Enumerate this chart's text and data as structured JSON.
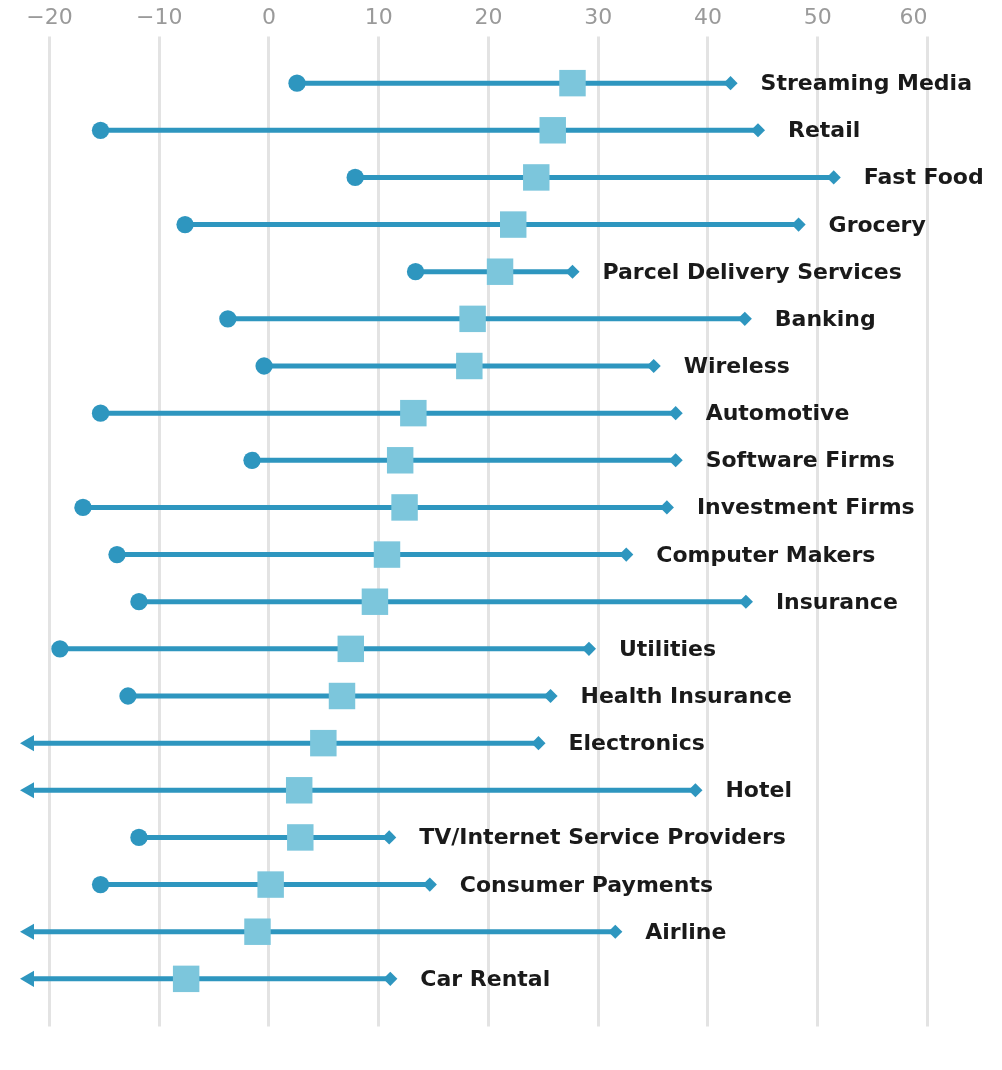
{
  "chart_data": {
    "type": "scatter",
    "categories": [
      "Streaming Media",
      "Retail",
      "Fast Food",
      "Grocery",
      "Parcel Delivery Services",
      "Banking",
      "Wireless",
      "Automotive",
      "Software Firms",
      "Investment Firms",
      "Computer Makers",
      "Insurance",
      "Utilities",
      "Health Insurance",
      "Electronics",
      "Hotel",
      "TV/Internet Service Providers",
      "Consumer Payments",
      "Airline",
      "Car Rental"
    ],
    "orientation": "horizontal",
    "series": [
      {
        "color": "#2e96bf",
        "marker": "circle",
        "values": [
          2.6,
          -15.3,
          7.9,
          -7.6,
          13.4,
          -3.7,
          -0.4,
          -15.3,
          -1.5,
          -16.9,
          -13.8,
          -11.8,
          -19.0,
          -12.8,
          null,
          null,
          -11.8,
          -15.3,
          null,
          null
        ]
      },
      {
        "color": "#7cc6dc",
        "marker": "square",
        "values": [
          27.7,
          25.9,
          24.4,
          22.3,
          21.1,
          18.6,
          18.3,
          13.2,
          12.0,
          12.4,
          10.8,
          9.7,
          7.5,
          6.7,
          5.0,
          2.8,
          2.9,
          0.2,
          -1.0,
          -7.5
        ]
      },
      {
        "color": "#2e96bf",
        "marker": "diamond",
        "values": [
          42.1,
          44.6,
          51.5,
          48.3,
          27.7,
          43.4,
          35.1,
          37.1,
          37.1,
          36.3,
          32.6,
          43.5,
          29.2,
          25.7,
          24.6,
          38.9,
          11.0,
          14.7,
          31.6,
          11.1
        ]
      }
    ],
    "xlim": [
      -22,
      60
    ],
    "xticks": [
      -20,
      -10,
      0,
      10,
      20,
      30,
      40,
      50,
      60
    ],
    "grid": "x"
  }
}
